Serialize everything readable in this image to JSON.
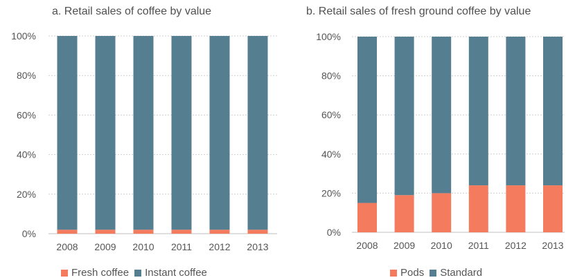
{
  "colors": {
    "accent": "#F47B5E",
    "primary": "#557F91",
    "grid": "#cfcfcf",
    "text": "#555555"
  },
  "chart_data": [
    {
      "type": "bar",
      "stacked": true,
      "title": "a. Retail sales of coffee by value",
      "categories": [
        "2008",
        "2009",
        "2010",
        "2011",
        "2012",
        "2013"
      ],
      "series": [
        {
          "name": "Fresh coffee",
          "color": "#F47B5E",
          "values": [
            2,
            2,
            2,
            2,
            2,
            2
          ]
        },
        {
          "name": "Instant coffee",
          "color": "#557F91",
          "values": [
            98,
            98,
            98,
            98,
            98,
            98
          ]
        }
      ],
      "yticks": [
        "0%",
        "20%",
        "40%",
        "60%",
        "80%",
        "100%"
      ],
      "ylim": [
        0,
        100
      ],
      "grid": true,
      "legend": "bottom"
    },
    {
      "type": "bar",
      "stacked": true,
      "title": "b. Retail sales of fresh ground coffee by value",
      "categories": [
        "2008",
        "2009",
        "2010",
        "2011",
        "2012",
        "2013"
      ],
      "series": [
        {
          "name": "Pods",
          "color": "#F47B5E",
          "values": [
            15,
            19,
            20,
            24,
            24,
            24
          ]
        },
        {
          "name": "Standard",
          "color": "#557F91",
          "values": [
            85,
            81,
            80,
            76,
            76,
            76
          ]
        }
      ],
      "yticks": [
        "0%",
        "20%",
        "40%",
        "60%",
        "80%",
        "100%"
      ],
      "ylim": [
        0,
        100
      ],
      "grid": true,
      "legend": "bottom"
    }
  ]
}
